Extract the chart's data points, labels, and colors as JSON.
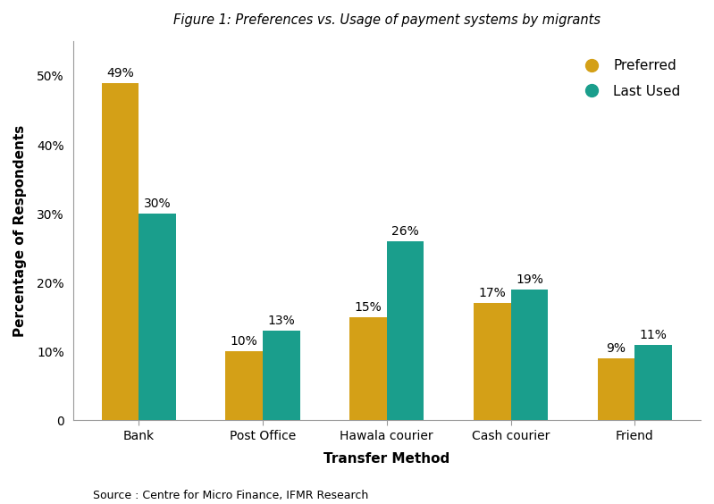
{
  "title": "Figure 1: Preferences vs. Usage of payment systems by migrants",
  "categories": [
    "Bank",
    "Post Office",
    "Hawala courier",
    "Cash courier",
    "Friend"
  ],
  "preferred_values": [
    49,
    10,
    15,
    17,
    9
  ],
  "last_used_values": [
    30,
    13,
    26,
    19,
    11
  ],
  "preferred_color": "#D4A017",
  "last_used_color": "#1A9E8C",
  "xlabel": "Transfer Method",
  "ylabel": "Percentage of Respondents",
  "ylim": [
    0,
    55
  ],
  "ytick_labels": [
    "0",
    "10%",
    "20%",
    "30%",
    "40%",
    "50%"
  ],
  "ytick_values": [
    0,
    10,
    20,
    30,
    40,
    50
  ],
  "legend_labels": [
    "Preferred",
    "Last Used"
  ],
  "source_text": "Source : Centre for Micro Finance, IFMR Research",
  "bar_width": 0.3,
  "title_fontsize": 10.5,
  "axis_label_fontsize": 11,
  "tick_fontsize": 10,
  "annotation_fontsize": 10,
  "legend_fontsize": 11
}
